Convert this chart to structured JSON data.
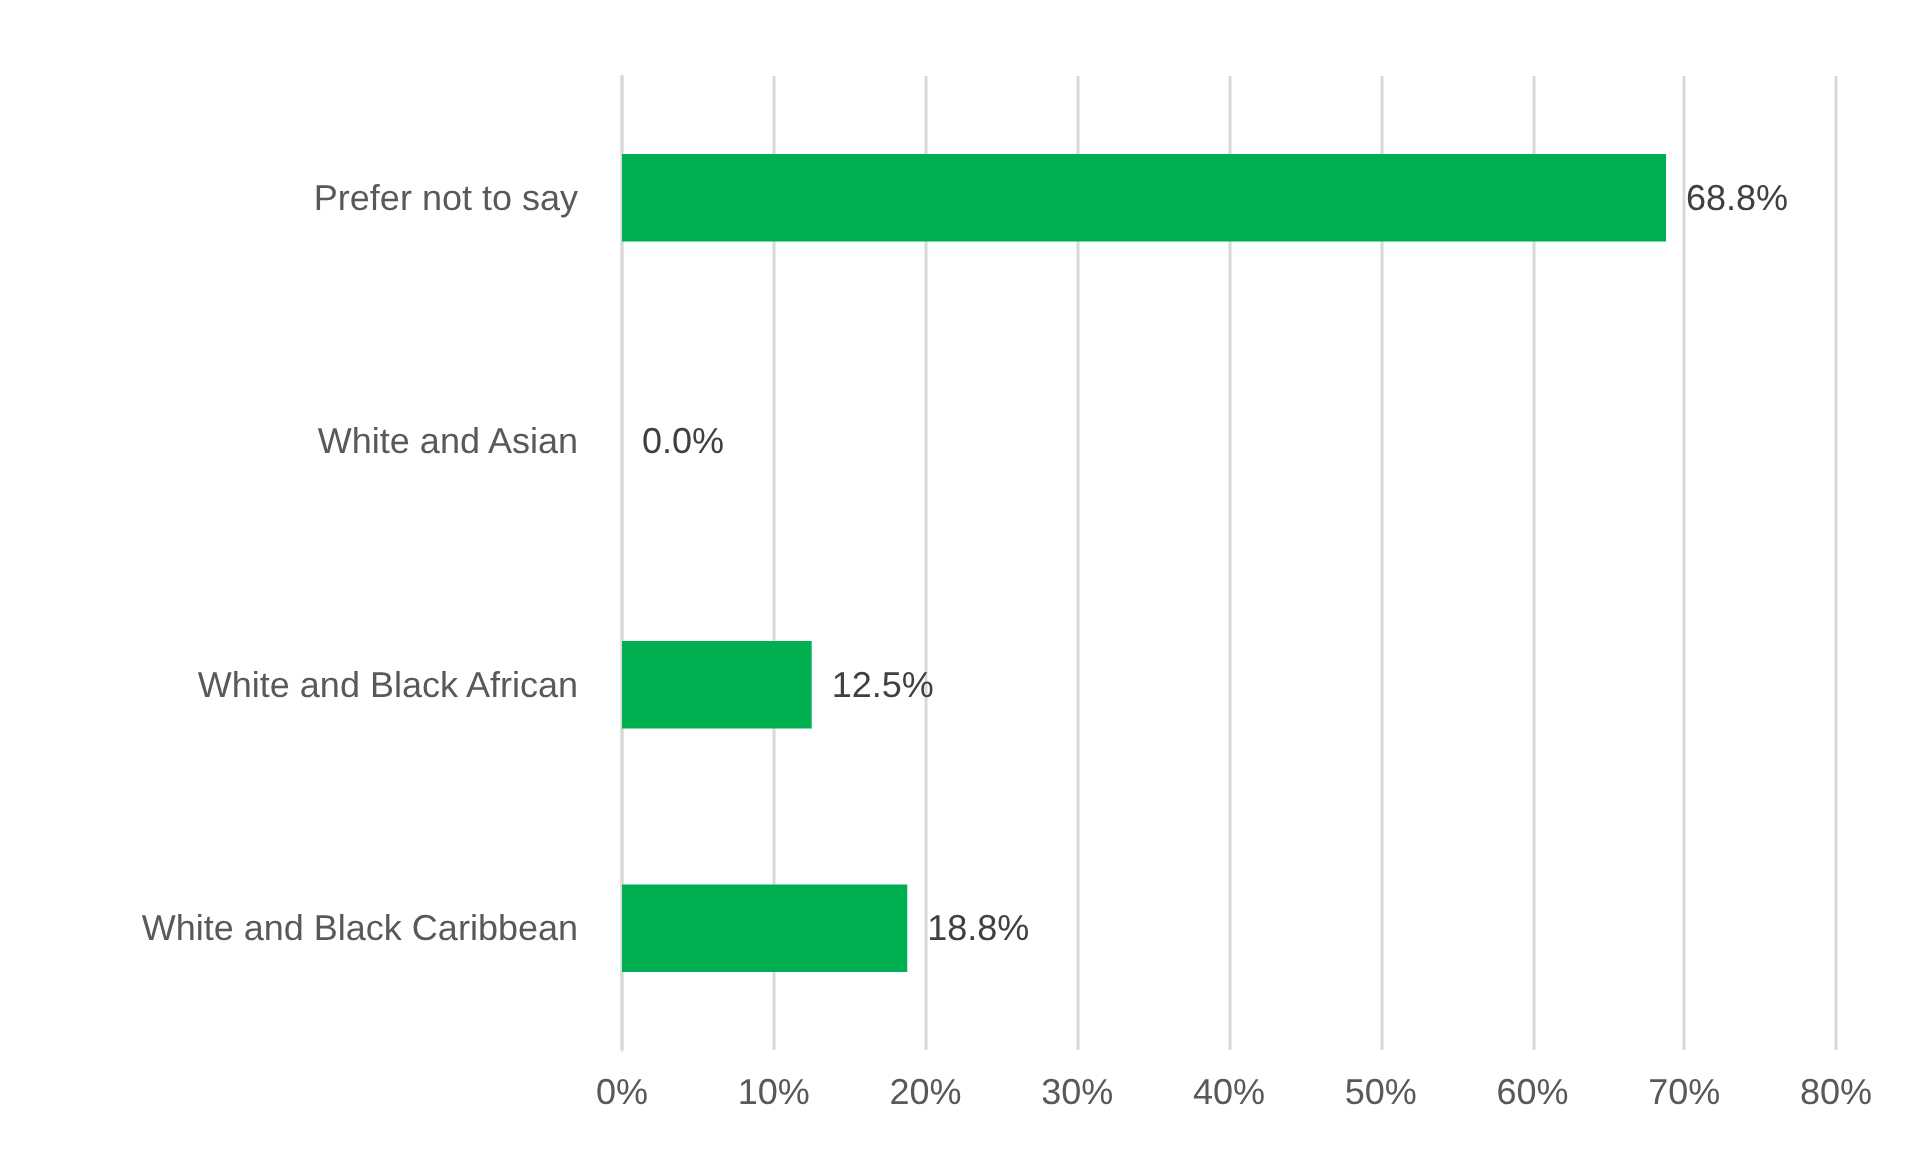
{
  "chart_data": {
    "type": "bar",
    "orientation": "horizontal",
    "categories": [
      "Prefer not to say",
      "White and Asian",
      "White and Black African",
      "White and Black Caribbean"
    ],
    "values": [
      68.8,
      0.0,
      12.5,
      18.8
    ],
    "color": "#00b050",
    "value_labels": [
      "68.8%",
      "0.0%",
      "12.5%",
      "18.8%"
    ],
    "xlim": [
      0,
      80
    ],
    "xticks": [
      {
        "value": 0,
        "label": "0%"
      },
      {
        "value": 10,
        "label": "10%"
      },
      {
        "value": 20,
        "label": "20%"
      },
      {
        "value": 30,
        "label": "30%"
      },
      {
        "value": 40,
        "label": "40%"
      },
      {
        "value": 50,
        "label": "50%"
      },
      {
        "value": 60,
        "label": "60%"
      },
      {
        "value": 70,
        "label": "70%"
      },
      {
        "value": 80,
        "label": "80%"
      }
    ],
    "grid": "x"
  }
}
